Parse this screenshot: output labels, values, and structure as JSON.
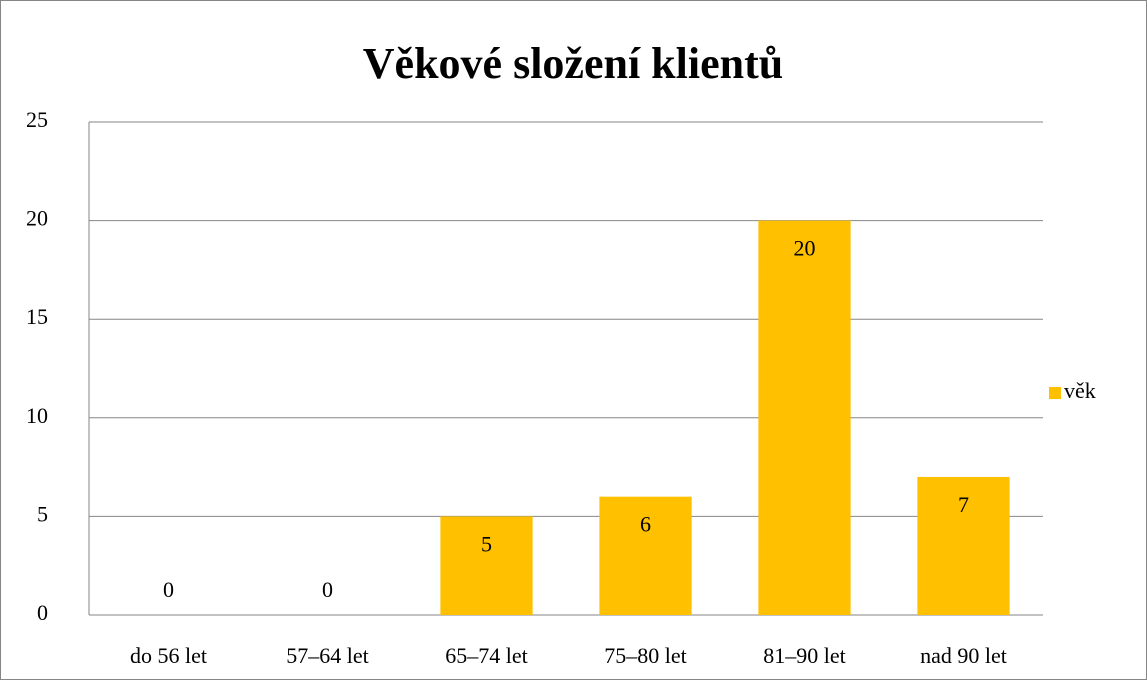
{
  "chart_data": {
    "type": "bar",
    "title": "Věkové složení klientů",
    "categories": [
      "do 56 let",
      "57–64 let",
      "65–74 let",
      "75–80 let",
      "81–90 let",
      "nad 90 let"
    ],
    "series": [
      {
        "name": "věk",
        "color": "#ffc000",
        "values": [
          0,
          0,
          5,
          6,
          20,
          7
        ]
      }
    ],
    "ylim": [
      0,
      25
    ],
    "yticks": [
      0,
      5,
      10,
      15,
      20,
      25
    ],
    "grid": true,
    "legend": "right",
    "data_labels": true
  }
}
